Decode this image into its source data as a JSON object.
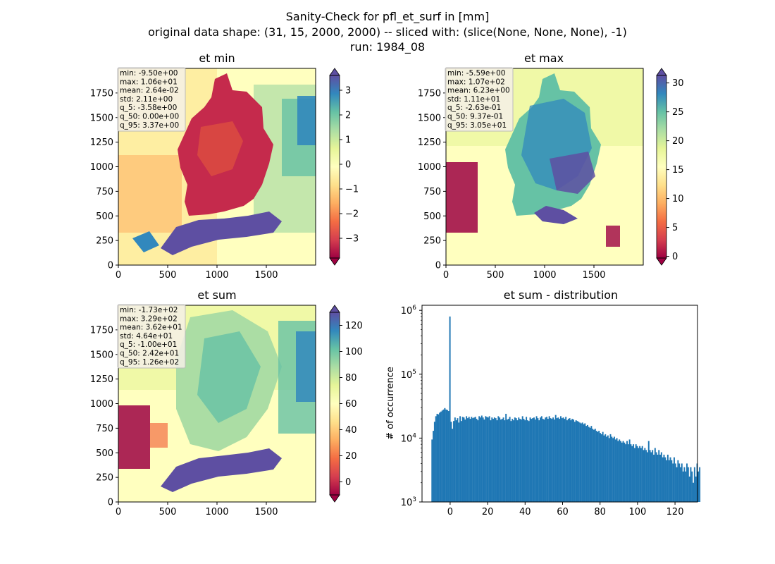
{
  "figure": {
    "title_lines": [
      "Sanity-Check for pfl_et_surf in [mm]",
      "original data shape: (31, 15, 2000, 2000) -- sliced with: (slice(None, None, None), -1)",
      "run: 1984_08"
    ]
  },
  "colormap": {
    "name": "Spectral",
    "stops": [
      "#9e0142",
      "#d53e4f",
      "#f46d43",
      "#fdae61",
      "#fee08b",
      "#ffffbf",
      "#e6f598",
      "#abdda4",
      "#66c2a5",
      "#3288bd",
      "#5e4fa2"
    ]
  },
  "chart_data": [
    {
      "type": "heatmap",
      "title": "et min",
      "xlim": [
        0,
        2000
      ],
      "ylim": [
        0,
        2000
      ],
      "xticks": [
        0,
        500,
        1000,
        1500
      ],
      "yticks": [
        0,
        250,
        500,
        750,
        1000,
        1250,
        1500,
        1750
      ],
      "colorbar": {
        "vmin": -3.8,
        "vmax": 3.6,
        "ticks": [
          -3,
          -2,
          -1,
          0,
          1,
          2,
          3
        ],
        "extend": "both"
      },
      "stats": [
        "min: -9.50e+00",
        "max: 1.06e+01",
        "mean: 2.64e-02",
        "std: 2.11e+00",
        "q_5: -3.58e+00",
        "q_50: 0.00e+00",
        "q_95: 3.37e+00"
      ]
    },
    {
      "type": "heatmap",
      "title": "et max",
      "xlim": [
        0,
        2000
      ],
      "ylim": [
        0,
        2000
      ],
      "xticks": [
        0,
        500,
        1000,
        1500
      ],
      "yticks": [
        0,
        250,
        500,
        750,
        1000,
        1250,
        1500,
        1750
      ],
      "colorbar": {
        "vmin": -0.3,
        "vmax": 31.3,
        "ticks": [
          0,
          5,
          10,
          15,
          20,
          25,
          30
        ],
        "extend": "both"
      },
      "stats": [
        "min: -5.59e+00",
        "max: 1.07e+02",
        "mean: 6.23e+00",
        "std: 1.11e+01",
        "q_5: -2.63e-01",
        "q_50: 9.37e-01",
        "q_95: 3.05e+01"
      ]
    },
    {
      "type": "heatmap",
      "title": "et sum",
      "xlim": [
        0,
        2000
      ],
      "ylim": [
        0,
        2000
      ],
      "xticks": [
        0,
        500,
        1000,
        1500
      ],
      "yticks": [
        0,
        250,
        500,
        750,
        1000,
        1250,
        1500,
        1750
      ],
      "colorbar": {
        "vmin": -10,
        "vmax": 130,
        "ticks": [
          0,
          20,
          40,
          60,
          80,
          100,
          120
        ],
        "extend": "both"
      },
      "stats": [
        "min: -1.73e+02",
        "max: 3.29e+02",
        "mean: 3.62e+01",
        "std: 4.64e+01",
        "q_5: -1.00e+01",
        "q_50: 2.42e+01",
        "q_95: 1.26e+02"
      ]
    },
    {
      "type": "bar",
      "title": "et sum - distribution",
      "ylabel": "# of occurrence",
      "xlabel": "",
      "yscale": "log",
      "color": "#1f77b4",
      "xlim": [
        -15,
        132
      ],
      "ylim": [
        1000,
        1200000
      ],
      "xticks": [
        0,
        20,
        40,
        60,
        80,
        100,
        120
      ],
      "yticks": [
        {
          "v": 1000,
          "base": "10",
          "exp": "3"
        },
        {
          "v": 10000,
          "base": "10",
          "exp": "4"
        },
        {
          "v": 100000,
          "base": "10",
          "exp": "5"
        },
        {
          "v": 1000000,
          "base": "10",
          "exp": "6"
        }
      ],
      "bins": {
        "start": -10.0,
        "width": 0.68
      },
      "values": [
        9500,
        13000,
        18000,
        22000,
        24000,
        23500,
        25000,
        26000,
        27000,
        28000,
        29500,
        28000,
        27500,
        26500,
        800000,
        18000,
        14000,
        18500,
        21000,
        19000,
        20500,
        17500,
        22000,
        18500,
        21500,
        21000,
        19500,
        22000,
        20500,
        21500,
        20000,
        21500,
        20500,
        21000,
        21500,
        20000,
        19000,
        22000,
        21000,
        22500,
        21000,
        19500,
        22000,
        21500,
        21000,
        22000,
        19000,
        21000,
        20000,
        21000,
        20500,
        19000,
        22000,
        21000,
        19500,
        20000,
        21000,
        19000,
        24000,
        19500,
        20000,
        21500,
        18500,
        20000,
        19000,
        21000,
        20500,
        19000,
        21000,
        20000,
        19500,
        22000,
        20000,
        19000,
        21500,
        19000,
        18500,
        21000,
        20000,
        20500,
        21000,
        19500,
        22000,
        20500,
        19000,
        21000,
        22000,
        20000,
        19500,
        21000,
        21500,
        20000,
        22000,
        20500,
        20000,
        21000,
        19500,
        23000,
        20500,
        21000,
        20000,
        22000,
        20500,
        21000,
        20000,
        21500,
        19000,
        20000,
        20500,
        19000,
        20000,
        19500,
        18000,
        19000,
        18500,
        18000,
        17500,
        17000,
        17500,
        16500,
        17000,
        15500,
        16000,
        15000,
        14500,
        15500,
        14000,
        13500,
        14000,
        13000,
        12500,
        13000,
        12000,
        11500,
        12500,
        11000,
        11500,
        10500,
        11000,
        10000,
        11500,
        10500,
        10000,
        10500,
        9500,
        10000,
        9000,
        9500,
        9000,
        8500,
        9000,
        8500,
        8000,
        9000,
        8000,
        9500,
        8000,
        7500,
        8000,
        7000,
        8000,
        7500,
        7000,
        7500,
        7000,
        7500,
        6500,
        7000,
        6500,
        6000,
        9000,
        6500,
        6000,
        6500,
        5500,
        7000,
        6000,
        5500,
        6500,
        5500,
        6000,
        5000,
        5500,
        5000,
        4500,
        5500,
        4500,
        5000,
        4500,
        4000,
        5000,
        4000,
        3500,
        4500,
        4000,
        3500,
        4000,
        3000,
        3500,
        3000,
        4000,
        3500,
        2500,
        3500,
        3000,
        2000,
        3500,
        2500,
        4000,
        3000,
        3500
      ]
    }
  ]
}
